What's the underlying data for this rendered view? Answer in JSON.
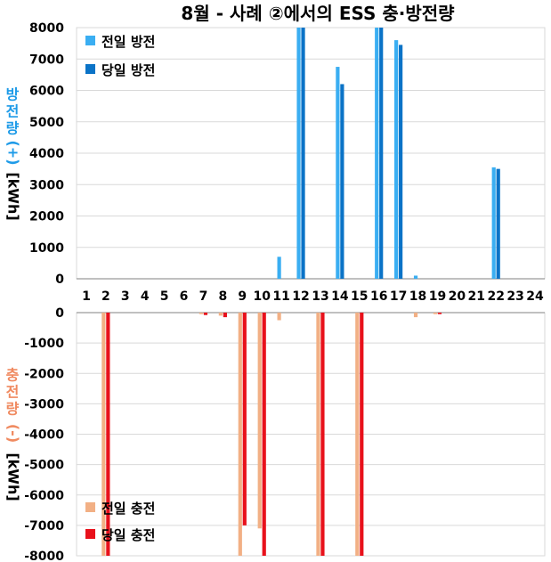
{
  "title": "8월 - 사례 ②에서의 ESS 충·방전량",
  "colors": {
    "prev_discharge": "#3AAEF2",
    "curr_discharge": "#0B73C7",
    "prev_charge": "#F2B085",
    "curr_charge": "#E8111B",
    "grid": "#D9D9D9",
    "axis": "#808080",
    "ylabel_top": "#1E9BE8",
    "ylabel_bottom": "#F08A60"
  },
  "chart_data": [
    {
      "type": "bar",
      "title": "8월 - 사례 ②에서의 ESS 충·방전량",
      "ylabel": "방전량 (+) [kWh]",
      "ylabel_main": "방전량 (+)",
      "ylabel_unit": "[kWh]",
      "ylim": [
        0,
        8000
      ],
      "yticks": [
        "0",
        "1000",
        "2000",
        "3000",
        "4000",
        "5000",
        "6000",
        "7000",
        "8000"
      ],
      "categories": [
        "1",
        "2",
        "3",
        "4",
        "5",
        "6",
        "7",
        "8",
        "9",
        "10",
        "11",
        "12",
        "13",
        "14",
        "15",
        "16",
        "17",
        "18",
        "19",
        "20",
        "21",
        "22",
        "23",
        "24"
      ],
      "grid": true,
      "legend_position": "top-left",
      "series": [
        {
          "name": "전일 방전",
          "values": [
            0,
            0,
            0,
            0,
            0,
            0,
            0,
            0,
            0,
            0,
            700,
            8000,
            0,
            6750,
            0,
            8000,
            7600,
            100,
            0,
            0,
            0,
            3550,
            0,
            0
          ]
        },
        {
          "name": "당일 방전",
          "values": [
            0,
            0,
            0,
            0,
            0,
            0,
            0,
            0,
            0,
            0,
            0,
            8000,
            0,
            6200,
            0,
            8000,
            7450,
            0,
            0,
            0,
            0,
            3500,
            0,
            0
          ]
        }
      ]
    },
    {
      "type": "bar",
      "ylabel": "충전량 (-) [kWh]",
      "ylabel_main": "충전량 (-)",
      "ylabel_unit": "[kWh]",
      "ylim": [
        -8000,
        0
      ],
      "yticks": [
        "0",
        "-1000",
        "-2000",
        "-3000",
        "-4000",
        "-5000",
        "-6000",
        "-7000",
        "-8000"
      ],
      "categories": [
        "1",
        "2",
        "3",
        "4",
        "5",
        "6",
        "7",
        "8",
        "9",
        "10",
        "11",
        "12",
        "13",
        "14",
        "15",
        "16",
        "17",
        "18",
        "19",
        "20",
        "21",
        "22",
        "23",
        "24"
      ],
      "grid": true,
      "legend_position": "bottom-left",
      "series": [
        {
          "name": "전일 충전",
          "values": [
            0,
            -8000,
            0,
            0,
            0,
            0,
            -50,
            -100,
            -8000,
            -7100,
            -250,
            0,
            -8000,
            0,
            -8000,
            0,
            0,
            -150,
            -50,
            0,
            0,
            0,
            0,
            0
          ]
        },
        {
          "name": "당일 충전",
          "values": [
            0,
            -8000,
            0,
            0,
            0,
            0,
            -80,
            -150,
            -7000,
            -8000,
            0,
            0,
            -8000,
            0,
            -8000,
            0,
            0,
            0,
            -50,
            0,
            0,
            0,
            0,
            0
          ]
        }
      ]
    }
  ]
}
